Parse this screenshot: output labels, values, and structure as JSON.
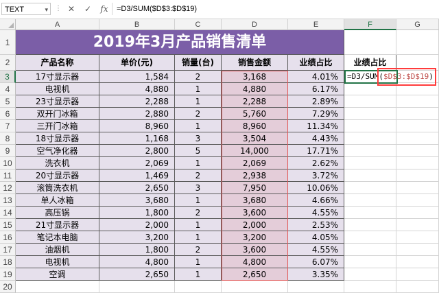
{
  "formula_bar": {
    "name_box": "TEXT",
    "cancel_icon": "✕",
    "confirm_icon": "✓",
    "fx_label": "fx",
    "formula": "=D3/SUM($D$3:$D$19)"
  },
  "columns": [
    "A",
    "B",
    "C",
    "D",
    "E",
    "F",
    "G"
  ],
  "rows": [
    "1",
    "2",
    "3",
    "4",
    "5",
    "6",
    "7",
    "8",
    "9",
    "10",
    "11",
    "12",
    "13",
    "14",
    "15",
    "16",
    "17",
    "18",
    "19",
    "20"
  ],
  "title": "2019年3月产品销售清单",
  "headers": {
    "product": "产品名称",
    "price": "单价(元)",
    "qty": "销量(台)",
    "amount": "销售金额",
    "share": "业绩占比",
    "share_f": "业绩占比"
  },
  "active_cell": {
    "prefix": "=D3/SUM(",
    "ref": "$D$3:$D$19",
    "suffix": ")"
  },
  "table": [
    {
      "product": "17寸显示器",
      "price": "1,584",
      "qty": "2",
      "amount": "3,168",
      "share": "4.01%"
    },
    {
      "product": "电视机",
      "price": "4,880",
      "qty": "1",
      "amount": "4,880",
      "share": "6.17%"
    },
    {
      "product": "23寸显示器",
      "price": "2,288",
      "qty": "1",
      "amount": "2,288",
      "share": "2.89%"
    },
    {
      "product": "双开门冰箱",
      "price": "2,880",
      "qty": "2",
      "amount": "5,760",
      "share": "7.29%"
    },
    {
      "product": "三开门冰箱",
      "price": "8,960",
      "qty": "1",
      "amount": "8,960",
      "share": "11.34%"
    },
    {
      "product": "18寸显示器",
      "price": "1,168",
      "qty": "3",
      "amount": "3,504",
      "share": "4.43%"
    },
    {
      "product": "空气净化器",
      "price": "2,800",
      "qty": "5",
      "amount": "14,000",
      "share": "17.71%"
    },
    {
      "product": "洗衣机",
      "price": "2,069",
      "qty": "1",
      "amount": "2,069",
      "share": "2.62%"
    },
    {
      "product": "20寸显示器",
      "price": "1,469",
      "qty": "2",
      "amount": "2,938",
      "share": "3.72%"
    },
    {
      "product": "滚筒洗衣机",
      "price": "2,650",
      "qty": "3",
      "amount": "7,950",
      "share": "10.06%"
    },
    {
      "product": "单人冰箱",
      "price": "3,680",
      "qty": "1",
      "amount": "3,680",
      "share": "4.66%"
    },
    {
      "product": "高压锅",
      "price": "1,800",
      "qty": "2",
      "amount": "3,600",
      "share": "4.55%"
    },
    {
      "product": "21寸显示器",
      "price": "2,000",
      "qty": "1",
      "amount": "2,000",
      "share": "2.53%"
    },
    {
      "product": "笔记本电脑",
      "price": "3,200",
      "qty": "1",
      "amount": "3,200",
      "share": "4.05%"
    },
    {
      "product": "油烟机",
      "price": "1,800",
      "qty": "2",
      "amount": "3,600",
      "share": "4.55%"
    },
    {
      "product": "电视机",
      "price": "4,800",
      "qty": "1",
      "amount": "4,800",
      "share": "6.07%"
    },
    {
      "product": "空调",
      "price": "2,650",
      "qty": "1",
      "amount": "2,650",
      "share": "3.35%"
    }
  ]
}
